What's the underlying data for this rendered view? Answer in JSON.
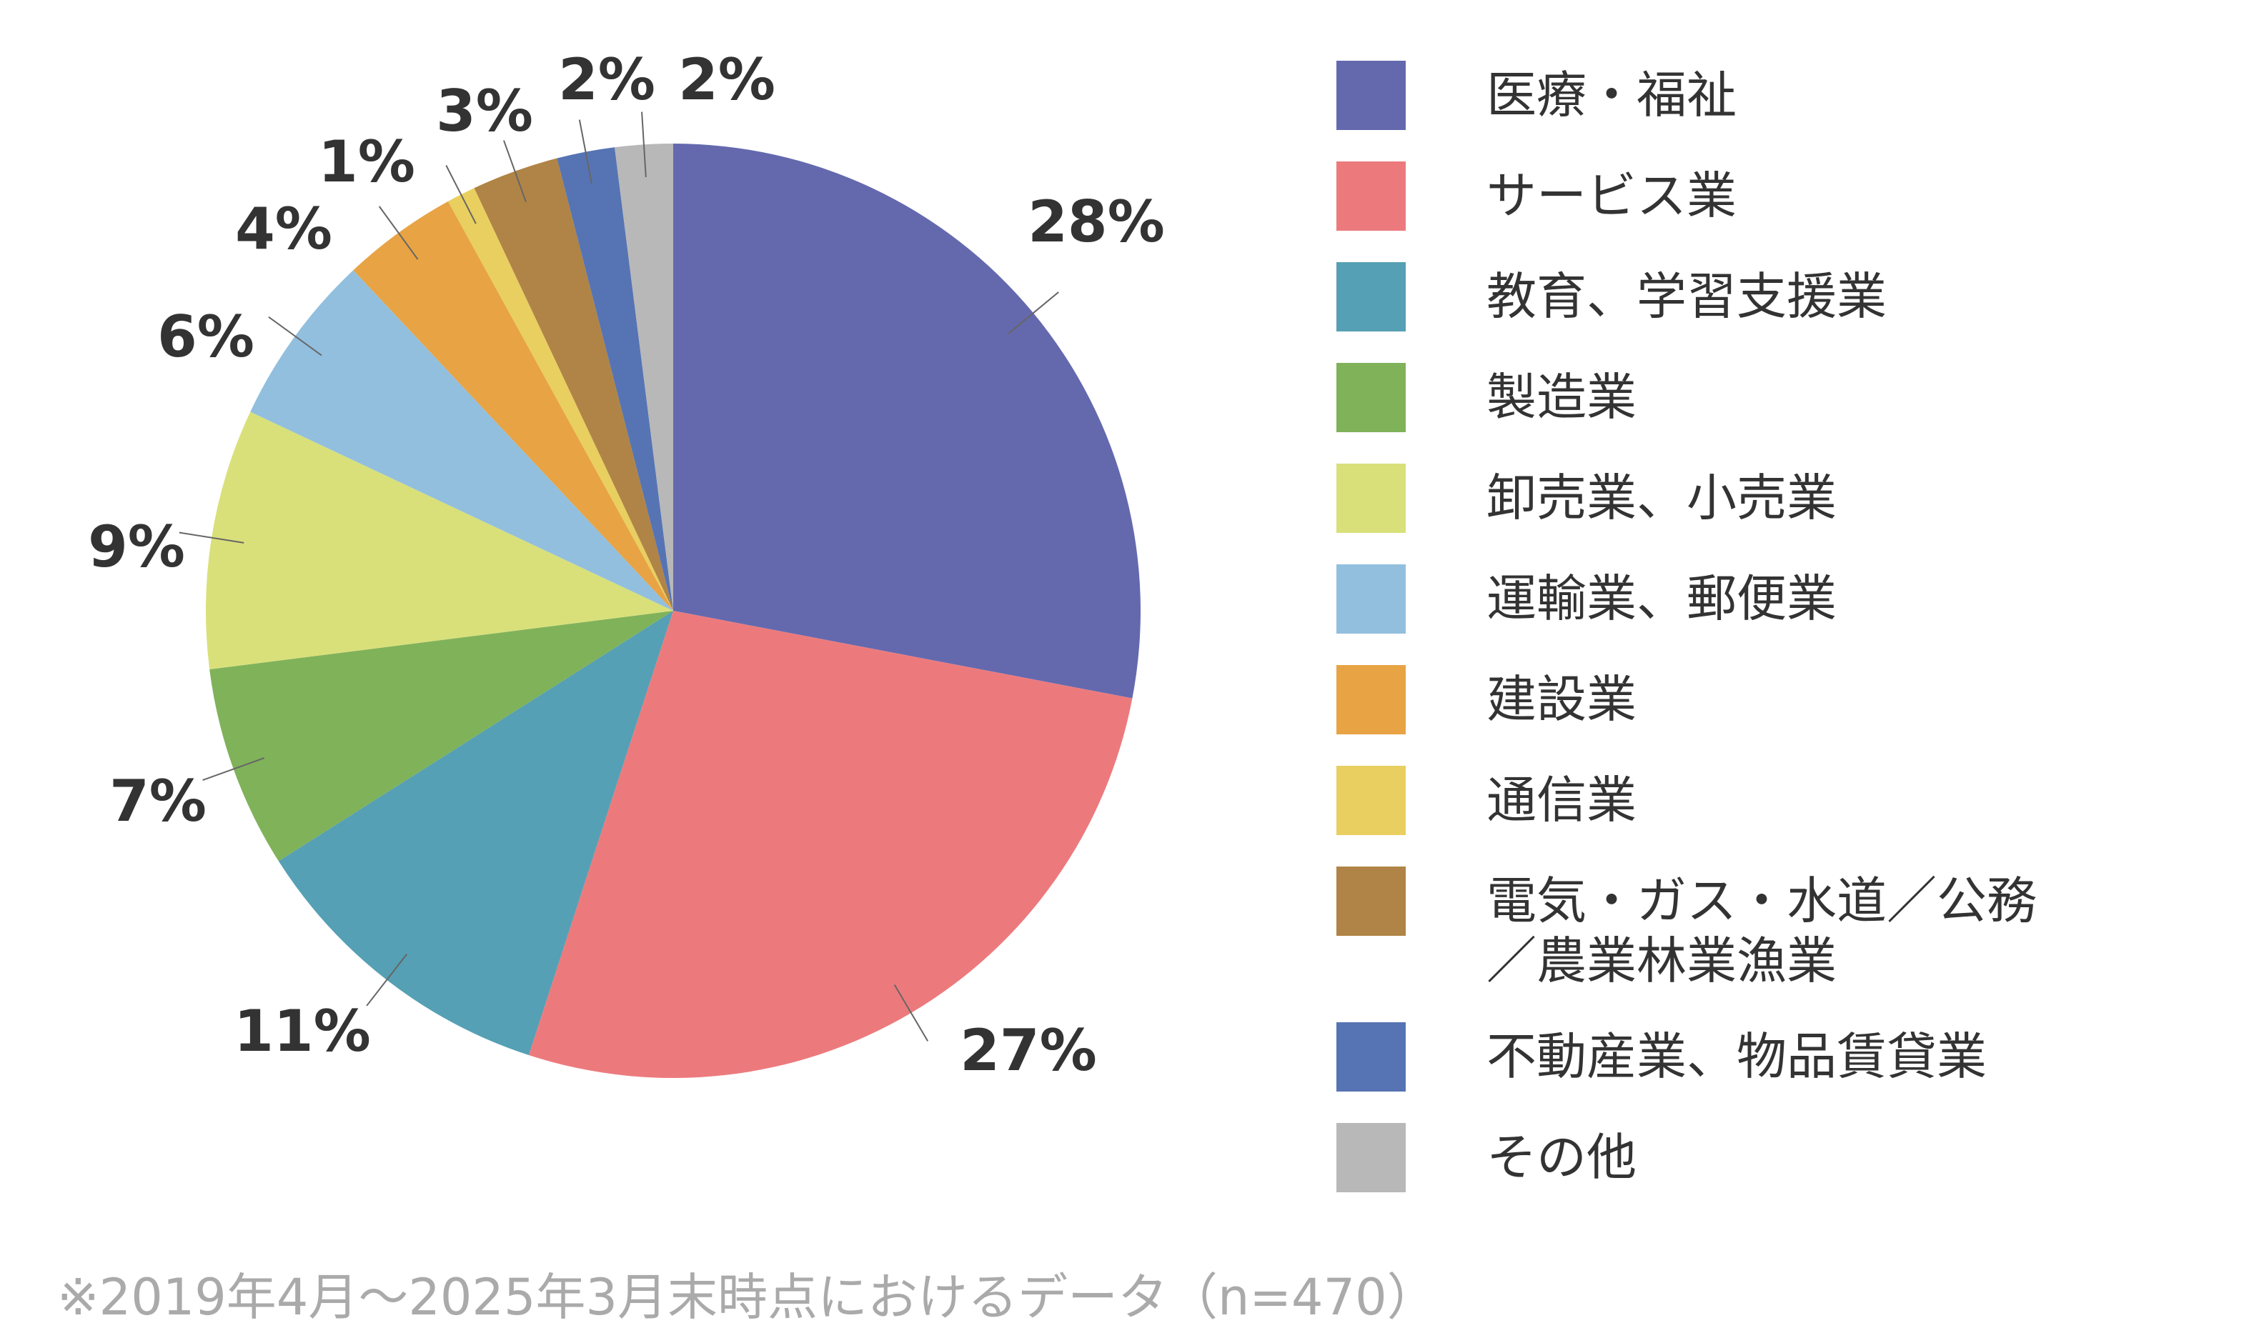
{
  "chart_data": {
    "type": "pie",
    "categories": [
      "医療・福祉",
      "サービス業",
      "教育、学習支援業",
      "製造業",
      "卸売業、小売業",
      "運輸業、郵便業",
      "建設業",
      "通信業",
      "電気・ガス・水道／公務／農業林業漁業",
      "不動産業、物品賃貸業",
      "その他"
    ],
    "values": [
      28,
      27,
      11,
      7,
      9,
      6,
      4,
      1,
      3,
      2,
      2
    ],
    "value_labels": [
      "28%",
      "27%",
      "11%",
      "7%",
      "9%",
      "6%",
      "4%",
      "1%",
      "3%",
      "2%",
      "2%"
    ],
    "colors": [
      "#6469ae",
      "#ec7a7d",
      "#55a0b4",
      "#80b25a",
      "#d9e07a",
      "#92bfde",
      "#e8a344",
      "#e8cf5f",
      "#b08446",
      "#5674b4",
      "#b8b8b8"
    ],
    "footnote": "※2019年4月～2025年3月末時点におけるデータ（n=470）"
  }
}
